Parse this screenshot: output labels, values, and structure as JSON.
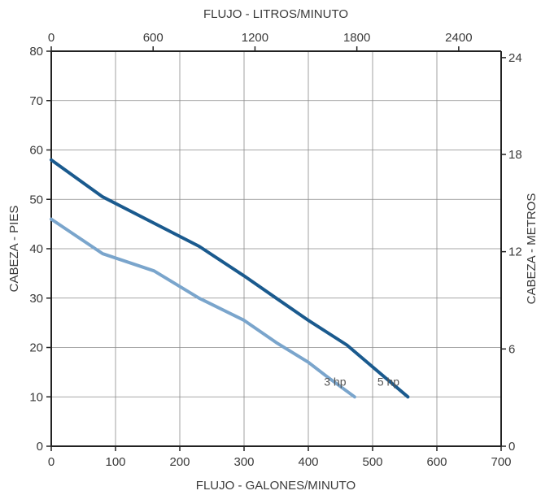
{
  "chart_data": {
    "type": "line",
    "x": {
      "label": "FLUJO - GALONES/MINUTO",
      "range": [
        0,
        700
      ],
      "ticks": [
        0,
        100,
        200,
        300,
        400,
        500,
        600,
        700
      ]
    },
    "x_top": {
      "label": "FLUJO - LITROS/MINUTO",
      "ticks": [
        0,
        600,
        1200,
        1800,
        2400
      ],
      "tick_positions_gpm": [
        0,
        158.5,
        317,
        475.5,
        634
      ]
    },
    "y": {
      "label": "CABEZA - PIES",
      "range": [
        0,
        80
      ],
      "ticks": [
        0,
        10,
        20,
        30,
        40,
        50,
        60,
        70,
        80
      ]
    },
    "y_right": {
      "label": "CABEZA - METROS",
      "ticks": [
        0,
        6,
        12,
        18,
        24
      ],
      "tick_positions_ft": [
        0,
        19.7,
        39.4,
        59.1,
        78.7
      ]
    },
    "grid": true,
    "series": [
      {
        "name": "5 hp",
        "color": "#1a5a8e",
        "points": [
          [
            0,
            58
          ],
          [
            80,
            50.5
          ],
          [
            230,
            40.5
          ],
          [
            300,
            34.5
          ],
          [
            350,
            30
          ],
          [
            400,
            25.5
          ],
          [
            460,
            20.5
          ],
          [
            555,
            10
          ]
        ]
      },
      {
        "name": "3 hp",
        "color": "#7aa5cc",
        "points": [
          [
            0,
            46
          ],
          [
            80,
            39
          ],
          [
            160,
            35.5
          ],
          [
            230,
            30
          ],
          [
            300,
            25.5
          ],
          [
            350,
            21
          ],
          [
            400,
            17
          ],
          [
            430,
            14
          ],
          [
            472,
            10
          ]
        ]
      }
    ]
  }
}
